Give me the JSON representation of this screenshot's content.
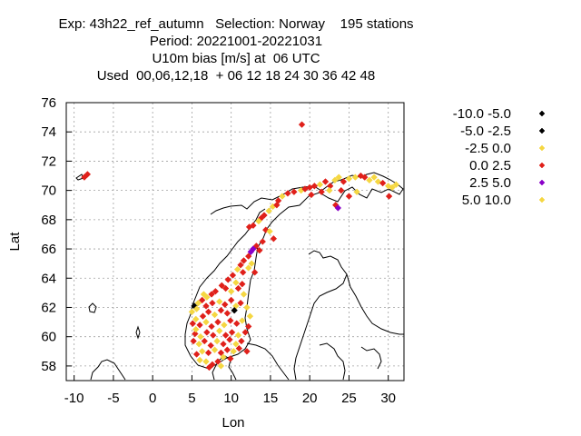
{
  "title": {
    "line1": "Exp: 43h22_ref_autumn   Selection: Norway    195 stations",
    "line2": "Period: 20221001-20221031",
    "line3": "U10m bias [m/s] at  06 UTC",
    "line4": "Used  00,06,12,18  + 06 12 18 24 30 36 42 48"
  },
  "chart_data": {
    "type": "scatter",
    "xlabel": "Lon",
    "ylabel": "Lat",
    "xlim": [
      -11,
      32
    ],
    "ylim": [
      57,
      76
    ],
    "xticks": [
      -10,
      -5,
      0,
      5,
      10,
      15,
      20,
      25,
      30
    ],
    "yticks": [
      58,
      60,
      62,
      64,
      66,
      68,
      70,
      72,
      74,
      76
    ],
    "grid": true,
    "legend": [
      {
        "label": "-10.0 -5.0",
        "color": "#000000"
      },
      {
        "label": "-5.0 -2.5",
        "color": "#000000"
      },
      {
        "label": "-2.5 0.0",
        "color": "#f5d742"
      },
      {
        "label": "0.0 2.5",
        "color": "#e0201a"
      },
      {
        "label": "2.5 5.0",
        "color": "#8a00c8"
      },
      {
        "label": "5.0 10.0",
        "color": "#f5d742"
      }
    ],
    "points": [
      {
        "x": 19.0,
        "y": 74.5,
        "c": "r"
      },
      {
        "x": -8.7,
        "y": 70.9,
        "c": "r"
      },
      {
        "x": -8.3,
        "y": 71.1,
        "c": "r"
      },
      {
        "x": 16.0,
        "y": 69.3,
        "c": "r"
      },
      {
        "x": 16.5,
        "y": 69.6,
        "c": "y"
      },
      {
        "x": 17.2,
        "y": 69.8,
        "c": "r"
      },
      {
        "x": 18.0,
        "y": 69.9,
        "c": "r"
      },
      {
        "x": 18.9,
        "y": 70.0,
        "c": "y"
      },
      {
        "x": 19.4,
        "y": 70.1,
        "c": "r"
      },
      {
        "x": 20.0,
        "y": 70.2,
        "c": "r"
      },
      {
        "x": 20.6,
        "y": 70.3,
        "c": "r"
      },
      {
        "x": 21.3,
        "y": 70.4,
        "c": "y"
      },
      {
        "x": 22.0,
        "y": 70.6,
        "c": "r"
      },
      {
        "x": 22.6,
        "y": 70.3,
        "c": "r"
      },
      {
        "x": 23.2,
        "y": 70.7,
        "c": "y"
      },
      {
        "x": 23.7,
        "y": 70.9,
        "c": "y"
      },
      {
        "x": 24.3,
        "y": 70.6,
        "c": "r"
      },
      {
        "x": 25.0,
        "y": 70.8,
        "c": "y"
      },
      {
        "x": 25.8,
        "y": 70.9,
        "c": "y"
      },
      {
        "x": 26.5,
        "y": 71.0,
        "c": "r"
      },
      {
        "x": 27.0,
        "y": 70.9,
        "c": "r"
      },
      {
        "x": 27.6,
        "y": 70.7,
        "c": "y"
      },
      {
        "x": 28.2,
        "y": 70.9,
        "c": "y"
      },
      {
        "x": 28.7,
        "y": 70.6,
        "c": "y"
      },
      {
        "x": 29.3,
        "y": 70.5,
        "c": "r"
      },
      {
        "x": 30.0,
        "y": 70.3,
        "c": "y"
      },
      {
        "x": 30.5,
        "y": 70.2,
        "c": "y"
      },
      {
        "x": 31.0,
        "y": 70.4,
        "c": "y"
      },
      {
        "x": 30.1,
        "y": 69.6,
        "c": "r"
      },
      {
        "x": 23.3,
        "y": 69.0,
        "c": "r"
      },
      {
        "x": 23.6,
        "y": 68.8,
        "c": "p"
      },
      {
        "x": 22.5,
        "y": 70.0,
        "c": "y"
      },
      {
        "x": 24.0,
        "y": 70.0,
        "c": "r"
      },
      {
        "x": 25.0,
        "y": 69.6,
        "c": "r"
      },
      {
        "x": 26.0,
        "y": 69.9,
        "c": "y"
      },
      {
        "x": 21.5,
        "y": 69.9,
        "c": "r"
      },
      {
        "x": 20.2,
        "y": 69.7,
        "c": "r"
      },
      {
        "x": 14.8,
        "y": 68.6,
        "c": "y"
      },
      {
        "x": 15.3,
        "y": 68.9,
        "c": "y"
      },
      {
        "x": 15.8,
        "y": 69.0,
        "c": "r"
      },
      {
        "x": 13.8,
        "y": 68.1,
        "c": "r"
      },
      {
        "x": 14.2,
        "y": 68.3,
        "c": "r"
      },
      {
        "x": 12.3,
        "y": 67.5,
        "c": "r"
      },
      {
        "x": 12.8,
        "y": 67.6,
        "c": "r"
      },
      {
        "x": 13.5,
        "y": 67.9,
        "c": "y"
      },
      {
        "x": 14.4,
        "y": 67.3,
        "c": "r"
      },
      {
        "x": 14.9,
        "y": 67.2,
        "c": "y"
      },
      {
        "x": 15.4,
        "y": 66.7,
        "c": "r"
      },
      {
        "x": 14.0,
        "y": 66.5,
        "c": "r"
      },
      {
        "x": 13.2,
        "y": 66.2,
        "c": "r"
      },
      {
        "x": 12.8,
        "y": 66.0,
        "c": "p"
      },
      {
        "x": 12.5,
        "y": 65.8,
        "c": "p"
      },
      {
        "x": 13.6,
        "y": 65.9,
        "c": "r"
      },
      {
        "x": 12.2,
        "y": 65.5,
        "c": "r"
      },
      {
        "x": 11.6,
        "y": 65.2,
        "c": "r"
      },
      {
        "x": 12.6,
        "y": 65.0,
        "c": "y"
      },
      {
        "x": 11.2,
        "y": 64.9,
        "c": "r"
      },
      {
        "x": 10.8,
        "y": 64.6,
        "c": "y"
      },
      {
        "x": 11.5,
        "y": 64.4,
        "c": "r"
      },
      {
        "x": 12.2,
        "y": 64.7,
        "c": "y"
      },
      {
        "x": 13.0,
        "y": 64.4,
        "c": "r"
      },
      {
        "x": 10.2,
        "y": 64.2,
        "c": "r"
      },
      {
        "x": 9.6,
        "y": 63.9,
        "c": "r"
      },
      {
        "x": 10.6,
        "y": 63.7,
        "c": "y"
      },
      {
        "x": 11.4,
        "y": 63.6,
        "c": "r"
      },
      {
        "x": 8.8,
        "y": 63.5,
        "c": "r"
      },
      {
        "x": 9.3,
        "y": 63.3,
        "c": "r"
      },
      {
        "x": 10.0,
        "y": 63.1,
        "c": "y"
      },
      {
        "x": 10.9,
        "y": 63.3,
        "c": "r"
      },
      {
        "x": 11.6,
        "y": 62.9,
        "c": "y"
      },
      {
        "x": 8.0,
        "y": 63.1,
        "c": "r"
      },
      {
        "x": 7.5,
        "y": 62.9,
        "c": "r"
      },
      {
        "x": 6.9,
        "y": 62.7,
        "c": "y"
      },
      {
        "x": 6.3,
        "y": 62.5,
        "c": "r"
      },
      {
        "x": 5.8,
        "y": 62.3,
        "c": "y"
      },
      {
        "x": 5.3,
        "y": 62.1,
        "c": "k"
      },
      {
        "x": 5.6,
        "y": 61.9,
        "c": "y"
      },
      {
        "x": 5.0,
        "y": 61.7,
        "c": "y"
      },
      {
        "x": 6.8,
        "y": 62.1,
        "c": "r"
      },
      {
        "x": 7.6,
        "y": 62.3,
        "c": "r"
      },
      {
        "x": 8.5,
        "y": 62.4,
        "c": "y"
      },
      {
        "x": 9.2,
        "y": 62.2,
        "c": "r"
      },
      {
        "x": 10.0,
        "y": 62.5,
        "c": "r"
      },
      {
        "x": 10.6,
        "y": 62.1,
        "c": "y"
      },
      {
        "x": 11.2,
        "y": 62.3,
        "c": "r"
      },
      {
        "x": 12.0,
        "y": 62.0,
        "c": "y"
      },
      {
        "x": 10.4,
        "y": 61.8,
        "c": "k"
      },
      {
        "x": 9.5,
        "y": 61.6,
        "c": "r"
      },
      {
        "x": 8.7,
        "y": 61.8,
        "c": "r"
      },
      {
        "x": 7.9,
        "y": 61.5,
        "c": "y"
      },
      {
        "x": 7.1,
        "y": 61.7,
        "c": "r"
      },
      {
        "x": 6.4,
        "y": 61.4,
        "c": "r"
      },
      {
        "x": 5.5,
        "y": 61.2,
        "c": "y"
      },
      {
        "x": 5.1,
        "y": 60.9,
        "c": "r"
      },
      {
        "x": 6.0,
        "y": 60.8,
        "c": "r"
      },
      {
        "x": 6.8,
        "y": 61.0,
        "c": "y"
      },
      {
        "x": 7.5,
        "y": 60.7,
        "c": "r"
      },
      {
        "x": 8.3,
        "y": 61.0,
        "c": "r"
      },
      {
        "x": 9.1,
        "y": 60.8,
        "c": "y"
      },
      {
        "x": 9.9,
        "y": 61.1,
        "c": "r"
      },
      {
        "x": 10.7,
        "y": 60.9,
        "c": "r"
      },
      {
        "x": 11.4,
        "y": 61.1,
        "c": "y"
      },
      {
        "x": 12.2,
        "y": 60.7,
        "c": "r"
      },
      {
        "x": 11.8,
        "y": 60.3,
        "c": "r"
      },
      {
        "x": 10.9,
        "y": 60.1,
        "c": "y"
      },
      {
        "x": 10.1,
        "y": 60.3,
        "c": "r"
      },
      {
        "x": 9.3,
        "y": 60.1,
        "c": "r"
      },
      {
        "x": 8.5,
        "y": 60.4,
        "c": "y"
      },
      {
        "x": 7.7,
        "y": 60.1,
        "c": "r"
      },
      {
        "x": 6.9,
        "y": 60.3,
        "c": "r"
      },
      {
        "x": 6.1,
        "y": 60.0,
        "c": "y"
      },
      {
        "x": 5.4,
        "y": 60.2,
        "c": "r"
      },
      {
        "x": 5.2,
        "y": 59.7,
        "c": "r"
      },
      {
        "x": 5.9,
        "y": 59.5,
        "c": "y"
      },
      {
        "x": 6.6,
        "y": 59.7,
        "c": "r"
      },
      {
        "x": 7.4,
        "y": 59.4,
        "c": "r"
      },
      {
        "x": 8.2,
        "y": 59.7,
        "c": "y"
      },
      {
        "x": 9.0,
        "y": 59.5,
        "c": "r"
      },
      {
        "x": 9.8,
        "y": 59.8,
        "c": "r"
      },
      {
        "x": 10.6,
        "y": 59.5,
        "c": "y"
      },
      {
        "x": 11.3,
        "y": 59.7,
        "c": "r"
      },
      {
        "x": 11.0,
        "y": 59.2,
        "c": "r"
      },
      {
        "x": 10.3,
        "y": 59.0,
        "c": "y"
      },
      {
        "x": 9.5,
        "y": 59.1,
        "c": "r"
      },
      {
        "x": 8.7,
        "y": 58.9,
        "c": "r"
      },
      {
        "x": 7.9,
        "y": 59.1,
        "c": "y"
      },
      {
        "x": 7.1,
        "y": 58.9,
        "c": "r"
      },
      {
        "x": 6.3,
        "y": 59.0,
        "c": "y"
      },
      {
        "x": 5.6,
        "y": 58.8,
        "c": "r"
      },
      {
        "x": 6.0,
        "y": 58.4,
        "c": "y"
      },
      {
        "x": 6.8,
        "y": 58.3,
        "c": "y"
      },
      {
        "x": 7.6,
        "y": 58.1,
        "c": "r"
      },
      {
        "x": 8.3,
        "y": 58.3,
        "c": "r"
      },
      {
        "x": 9.0,
        "y": 58.6,
        "c": "y"
      },
      {
        "x": 7.2,
        "y": 57.9,
        "c": "r"
      },
      {
        "x": 8.7,
        "y": 58.0,
        "c": "y"
      },
      {
        "x": 5.5,
        "y": 60.5,
        "c": "y"
      },
      {
        "x": 6.5,
        "y": 62.9,
        "c": "y"
      },
      {
        "x": 12.4,
        "y": 61.4,
        "c": "y"
      },
      {
        "x": 12.0,
        "y": 59.0,
        "c": "r"
      },
      {
        "x": 9.9,
        "y": 58.5,
        "c": "r"
      }
    ]
  }
}
